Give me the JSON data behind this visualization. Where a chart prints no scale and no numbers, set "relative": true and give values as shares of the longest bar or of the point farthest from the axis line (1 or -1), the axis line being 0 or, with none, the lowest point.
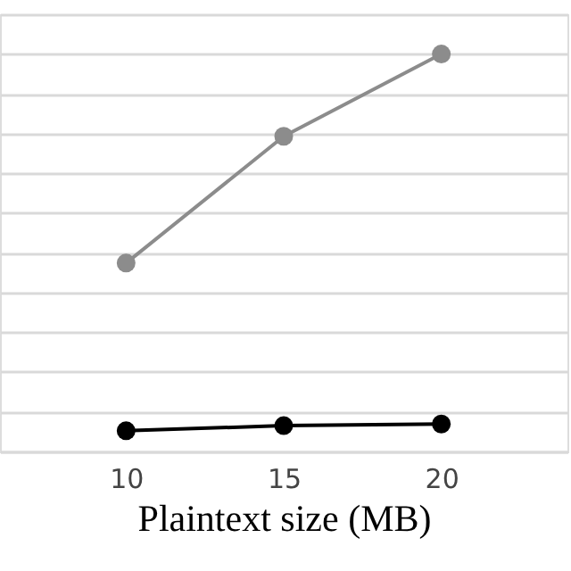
{
  "chart_data": {
    "type": "line",
    "xlabel": "Plaintext size (MB)",
    "x": [
      10,
      15,
      20
    ],
    "xlim": [
      6,
      24
    ],
    "xticks": [
      10,
      15,
      20
    ],
    "relative": true,
    "grid": "y",
    "marker": "circle",
    "line_style": "solid",
    "series": [
      {
        "color": "#8c8c8c",
        "values": [
          0.474,
          0.793,
          1
        ]
      },
      {
        "color": "#000000",
        "values": [
          0.052,
          0.065,
          0.069
        ]
      }
    ]
  }
}
